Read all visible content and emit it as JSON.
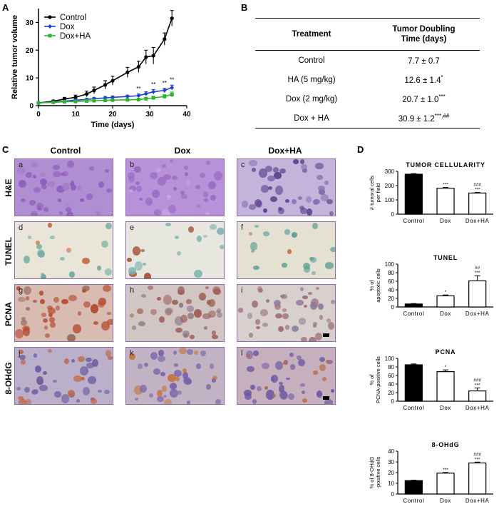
{
  "panel_labels": {
    "a": "A",
    "b": "B",
    "c": "C",
    "d": "D"
  },
  "panel_a": {
    "ylabel": "Relative tumor volume",
    "xlabel": "Time (days)",
    "legend": [
      "Control",
      "Dox",
      "Dox+HA"
    ],
    "significance": "**"
  },
  "table": {
    "col1_header": "Treatment",
    "col2_header_line1": "Tumor Doubling",
    "col2_header_line2": "Time (days)",
    "rows": [
      {
        "treatment": "Control",
        "value": "7.7 ± 0.7",
        "sup": ""
      },
      {
        "treatment": "HA (5 mg/kg)",
        "value": "12.6 ± 1.4",
        "sup": "*"
      },
      {
        "treatment": "Dox (2 mg/kg)",
        "value": "20.7 ± 1.0",
        "sup": "***"
      },
      {
        "treatment": "Dox + HA",
        "value": "30.9 ± 1.2",
        "sup": "***,##"
      }
    ]
  },
  "panel_c": {
    "columns": [
      "Control",
      "Dox",
      "Dox+HA"
    ],
    "rows": [
      "H&E",
      "TUNEL",
      "PCNA",
      "8-OHdG"
    ],
    "letters": [
      "a",
      "b",
      "c",
      "d",
      "e",
      "f",
      "g",
      "h",
      "i",
      "j",
      "k",
      "l"
    ]
  },
  "chart_data": [
    {
      "type": "line",
      "title": "",
      "xlabel": "Time (days)",
      "ylabel": "Relative tumor volume",
      "xlim": [
        0,
        40
      ],
      "ylim": [
        0,
        35
      ],
      "xticks": [
        0,
        10,
        20,
        30,
        40
      ],
      "yticks": [
        0,
        10,
        20,
        30
      ],
      "legend": "top-left",
      "series": [
        {
          "name": "Control",
          "color": "#000000",
          "x": [
            0,
            4,
            7,
            10,
            13,
            15,
            18,
            20,
            24,
            27,
            29,
            31,
            34,
            36
          ],
          "y": [
            1.0,
            1.6,
            2.4,
            3.0,
            4.2,
            5.5,
            7.5,
            9.0,
            12.0,
            14.0,
            17.5,
            18.0,
            24.0,
            31.5
          ],
          "err": [
            0.2,
            0.4,
            0.6,
            0.8,
            1.0,
            1.2,
            1.5,
            1.6,
            1.8,
            2.0,
            2.5,
            3.0,
            2.2,
            2.8
          ]
        },
        {
          "name": "Dox",
          "color": "#1f3fd0",
          "x": [
            0,
            4,
            7,
            10,
            13,
            15,
            18,
            20,
            24,
            27,
            29,
            31,
            34,
            36
          ],
          "y": [
            1.0,
            1.3,
            1.6,
            2.0,
            2.2,
            2.5,
            2.8,
            3.0,
            3.3,
            3.6,
            4.3,
            5.0,
            5.5,
            6.5
          ],
          "err": [
            0.2,
            0.3,
            0.3,
            0.4,
            0.4,
            0.4,
            0.5,
            0.5,
            0.5,
            0.6,
            0.7,
            0.8,
            0.8,
            0.9
          ]
        },
        {
          "name": "Dox+HA",
          "color": "#2fb32f",
          "x": [
            0,
            4,
            7,
            10,
            13,
            15,
            18,
            20,
            24,
            27,
            29,
            31,
            34,
            36
          ],
          "y": [
            1.0,
            1.2,
            1.4,
            1.5,
            1.7,
            1.8,
            1.9,
            2.0,
            2.1,
            2.2,
            2.5,
            2.8,
            3.3,
            4.0
          ],
          "err": [
            0.2,
            0.2,
            0.3,
            0.3,
            0.3,
            0.3,
            0.4,
            0.4,
            0.4,
            0.4,
            0.5,
            0.6,
            0.7,
            0.9
          ]
        }
      ],
      "annotations": [
        {
          "x": 27,
          "y": 5.4,
          "text": "**"
        },
        {
          "x": 31,
          "y": 6.9,
          "text": "**"
        },
        {
          "x": 34,
          "y": 7.4,
          "text": "**"
        },
        {
          "x": 36,
          "y": 8.6,
          "text": "**"
        }
      ]
    },
    {
      "type": "bar",
      "title": "TUMOR CELLULARITY",
      "ylabel": "# tumoral cells per field",
      "categories": [
        "Control",
        "Dox",
        "Dox+HA"
      ],
      "values": [
        280,
        182,
        148
      ],
      "err": [
        4,
        5,
        4
      ],
      "fills": [
        "#000000",
        "#ffffff",
        "#ffffff"
      ],
      "ylim": [
        0,
        300
      ],
      "yticks": [
        0,
        100,
        200,
        300
      ],
      "marks": [
        "",
        "***",
        "***"
      ],
      "marks2": [
        "",
        "",
        "###"
      ]
    },
    {
      "type": "bar",
      "title": "TUNEL",
      "ylabel": "% of apoptotic cells",
      "categories": [
        "Control",
        "Dox",
        "Dox+HA"
      ],
      "values": [
        7,
        26,
        61
      ],
      "err": [
        1,
        2,
        12
      ],
      "fills": [
        "#000000",
        "#ffffff",
        "#ffffff"
      ],
      "ylim": [
        0,
        100
      ],
      "yticks": [
        0,
        20,
        40,
        60,
        80,
        100
      ],
      "marks": [
        "",
        "*",
        "***"
      ],
      "marks2": [
        "",
        "",
        "##"
      ]
    },
    {
      "type": "bar",
      "title": "PCNA",
      "ylabel": "% of PCNA-positive cells",
      "categories": [
        "Control",
        "Dox",
        "Dox+HA"
      ],
      "values": [
        85,
        69,
        24
      ],
      "err": [
        2,
        4,
        7
      ],
      "fills": [
        "#000000",
        "#ffffff",
        "#ffffff"
      ],
      "ylim": [
        0,
        100
      ],
      "yticks": [
        0,
        20,
        40,
        60,
        80,
        100
      ],
      "marks": [
        "",
        "*",
        "***"
      ],
      "marks2": [
        "",
        "",
        "###"
      ]
    },
    {
      "type": "bar",
      "title": "8-OHdG",
      "ylabel": "% of 8-OHdG -positive cells",
      "categories": [
        "Control",
        "Dox",
        "Dox+HA"
      ],
      "values": [
        12.5,
        19.5,
        29
      ],
      "err": [
        0.4,
        0.6,
        0.8
      ],
      "fills": [
        "#000000",
        "#ffffff",
        "#ffffff"
      ],
      "ylim": [
        0,
        40
      ],
      "yticks": [
        0,
        10,
        20,
        30,
        40
      ],
      "marks": [
        "",
        "***",
        "***"
      ],
      "marks2": [
        "",
        "",
        "###"
      ]
    }
  ]
}
